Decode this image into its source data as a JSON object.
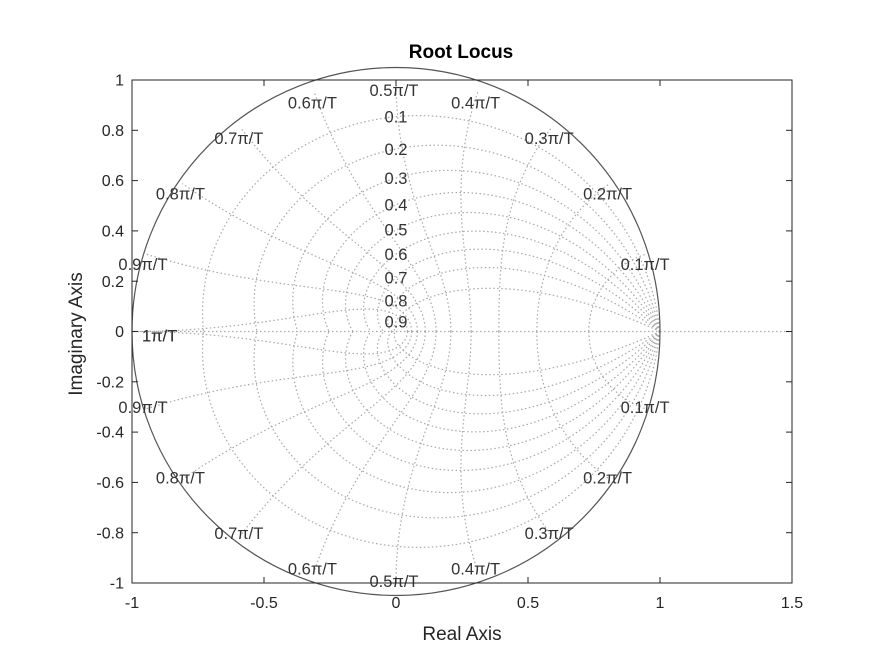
{
  "chart_data": {
    "type": "root-locus",
    "title": "Root Locus",
    "xlabel": "Real Axis",
    "ylabel": "Imaginary Axis",
    "xlim": [
      -1,
      1.5
    ],
    "ylim": [
      -1,
      1
    ],
    "x_ticks": [
      "-1",
      "-0.5",
      "0",
      "0.5",
      "1",
      "1.5"
    ],
    "y_ticks": [
      "-1",
      "-0.8",
      "-0.6",
      "-0.4",
      "-0.2",
      "0",
      "0.2",
      "0.4",
      "0.6",
      "0.8",
      "1"
    ],
    "unit_circle": true,
    "grid": "zgrid",
    "damping_ratios": [
      "0.1",
      "0.2",
      "0.3",
      "0.4",
      "0.5",
      "0.6",
      "0.7",
      "0.8",
      "0.9"
    ],
    "natural_frequencies": [
      "0.1π/T",
      "0.2π/T",
      "0.3π/T",
      "0.4π/T",
      "0.5π/T",
      "0.6π/T",
      "0.7π/T",
      "0.8π/T",
      "0.9π/T",
      "1π/T"
    ],
    "colors": {
      "axes": "#262626",
      "grid": "#a8a8a8",
      "circle": "#555555"
    }
  }
}
